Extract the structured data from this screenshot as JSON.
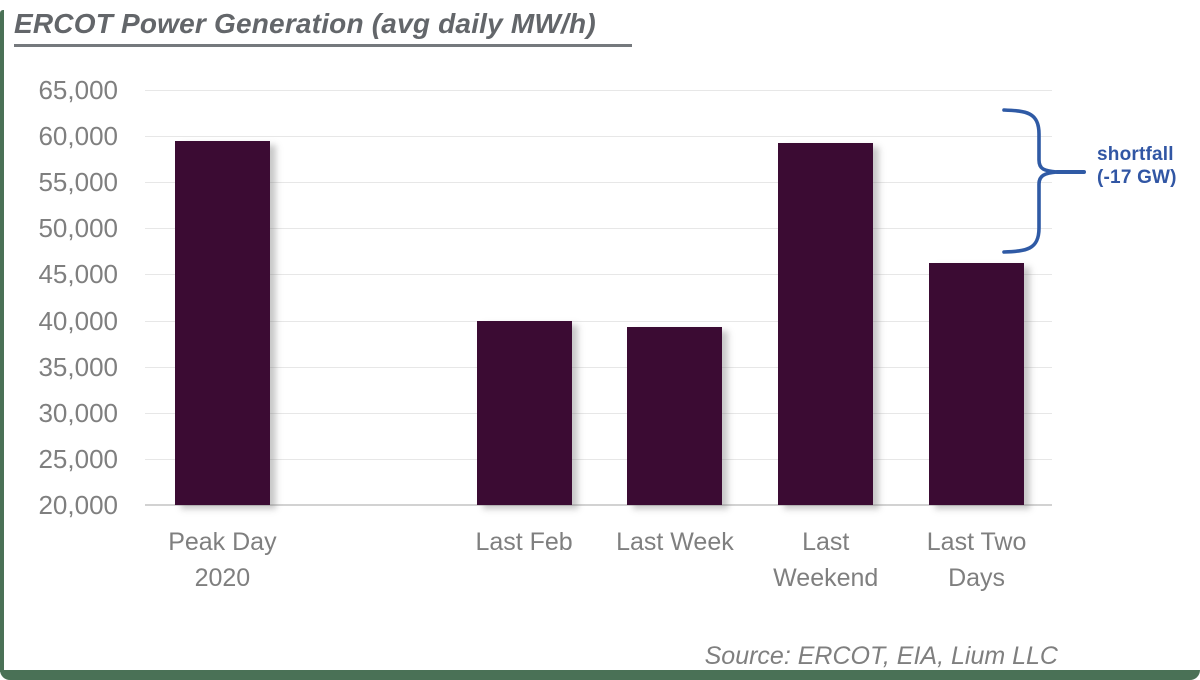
{
  "title": {
    "text": "ERCOT Power Generation (avg daily MW/h)"
  },
  "source_note": "Source: ERCOT, EIA, Lium LLC",
  "annotation": {
    "line1": "shortfall",
    "line2": "(-17 GW)"
  },
  "colors": {
    "bar": "#3b0b33",
    "accent_green": "#4a7156",
    "annotation_blue": "#2f5aa5",
    "label_gray": "#7f7f7f",
    "title_gray": "#63666a",
    "gridline": "#e7e7e7"
  },
  "chart_data": {
    "type": "bar",
    "title": "ERCOT Power Generation (avg daily MW/h)",
    "xlabel": "",
    "ylabel": "",
    "ylim": [
      20000,
      65000
    ],
    "grid": true,
    "legend": false,
    "bar_color": "#3b0b33",
    "slot_count": 6,
    "yticks": [
      {
        "value": 65000,
        "label": "65,000"
      },
      {
        "value": 60000,
        "label": "60,000"
      },
      {
        "value": 55000,
        "label": "55,000"
      },
      {
        "value": 50000,
        "label": "50,000"
      },
      {
        "value": 45000,
        "label": "45,000"
      },
      {
        "value": 40000,
        "label": "40,000"
      },
      {
        "value": 35000,
        "label": "35,000"
      },
      {
        "value": 30000,
        "label": "30,000"
      },
      {
        "value": 25000,
        "label": "25,000"
      },
      {
        "value": 20000,
        "label": "20,000"
      }
    ],
    "categories": [
      {
        "name": "Peak Day 2020",
        "label_lines": [
          "Peak Day",
          "2020"
        ],
        "value": 59500,
        "slot": 0
      },
      {
        "name": "Last Feb",
        "label_lines": [
          "Last Feb"
        ],
        "value": 40000,
        "slot": 2
      },
      {
        "name": "Last Week",
        "label_lines": [
          "Last Week"
        ],
        "value": 39300,
        "slot": 3
      },
      {
        "name": "Last Weekend",
        "label_lines": [
          "Last",
          "Weekend"
        ],
        "value": 59300,
        "slot": 4
      },
      {
        "name": "Last Two Days",
        "label_lines": [
          "Last Two",
          "Days"
        ],
        "value": 46200,
        "slot": 5
      }
    ],
    "annotation": {
      "text": "shortfall (-17 GW)",
      "span_values": [
        62700,
        47200
      ]
    }
  }
}
